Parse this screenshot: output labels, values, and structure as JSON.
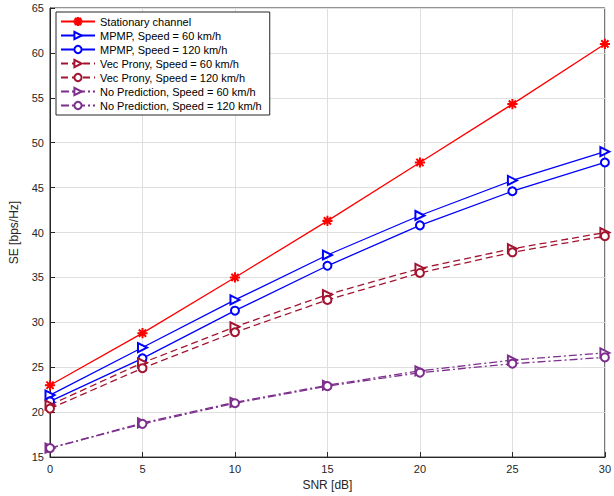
{
  "chart_data": {
    "type": "line",
    "x_label": "SNR [dB]",
    "y_label": "SE [bps/Hz]",
    "x": [
      0,
      5,
      10,
      15,
      20,
      25,
      30
    ],
    "xlim": [
      0,
      30
    ],
    "xticks": [
      0,
      5,
      10,
      15,
      20,
      25,
      30
    ],
    "ylim": [
      15,
      65
    ],
    "yticks": [
      15,
      20,
      25,
      30,
      35,
      40,
      45,
      50,
      55,
      60,
      65
    ],
    "grid": true,
    "legend": "upper left",
    "series": [
      {
        "name": "Stationary channel",
        "color": "#ff0000",
        "marker": "asterisk",
        "line_style": "solid",
        "values": [
          23,
          28.8,
          35,
          41.3,
          47.8,
          54.3,
          61
        ]
      },
      {
        "name": "MPMP, Speed = 60 km/h",
        "color": "#0000ff",
        "marker": "triangle-right",
        "line_style": "solid",
        "values": [
          21.9,
          27.2,
          32.5,
          37.5,
          41.9,
          45.8,
          49
        ]
      },
      {
        "name": "MPMP, Speed = 120 km/h",
        "color": "#0000ff",
        "marker": "circle",
        "line_style": "solid",
        "values": [
          21.2,
          26,
          31.3,
          36.3,
          40.8,
          44.6,
          47.8
        ]
      },
      {
        "name": "Vec Prony, Speed = 60 km/h",
        "color": "#a2142f",
        "marker": "triangle-right",
        "line_style": "dashed",
        "values": [
          20.8,
          25.5,
          29.5,
          33.1,
          36,
          38.2,
          40
        ]
      },
      {
        "name": "Vec Prony, Speed = 120 km/h",
        "color": "#a2142f",
        "marker": "circle",
        "line_style": "dashed",
        "values": [
          20.4,
          24.9,
          28.9,
          32.5,
          35.5,
          37.8,
          39.6
        ]
      },
      {
        "name": "No Prediction, Speed = 60 km/h",
        "color": "#7e2f8e",
        "marker": "triangle-right",
        "line_style": "dashdot",
        "values": [
          16,
          18.8,
          21.1,
          23,
          24.6,
          25.8,
          26.6
        ]
      },
      {
        "name": "No Prediction, Speed = 120 km/h",
        "color": "#7e2f8e",
        "marker": "circle",
        "line_style": "dashdot",
        "values": [
          16,
          18.7,
          21,
          22.9,
          24.4,
          25.4,
          26.1
        ]
      }
    ]
  }
}
